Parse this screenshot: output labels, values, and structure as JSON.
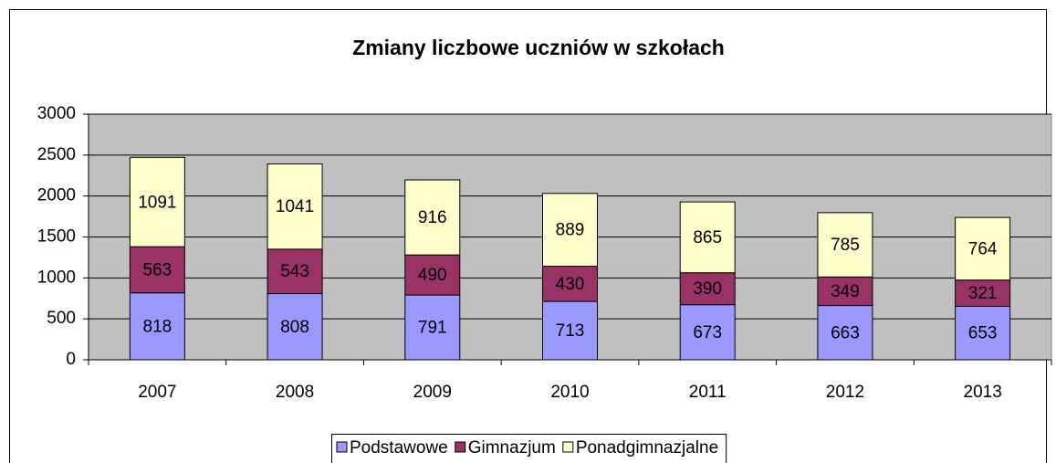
{
  "chart_data": {
    "type": "stacked_bar",
    "title": "Zmiany liczbowe uczniów w szkołach",
    "categories": [
      "2007",
      "2008",
      "2009",
      "2010",
      "2011",
      "2012",
      "2013"
    ],
    "series": [
      {
        "name": "Podstawowe",
        "color": "#9999ff",
        "values": [
          818,
          808,
          791,
          713,
          673,
          663,
          653
        ]
      },
      {
        "name": "Gimnazjum",
        "color": "#993366",
        "values": [
          563,
          543,
          490,
          430,
          390,
          349,
          321
        ]
      },
      {
        "name": "Ponadgimnazjalne",
        "color": "#ffffcc",
        "values": [
          1091,
          1041,
          916,
          889,
          865,
          785,
          764
        ]
      }
    ],
    "ylim": [
      0,
      3000
    ],
    "yticks": [
      0,
      500,
      1000,
      1500,
      2000,
      2500,
      3000
    ],
    "grid": true,
    "legend": "bottom"
  }
}
